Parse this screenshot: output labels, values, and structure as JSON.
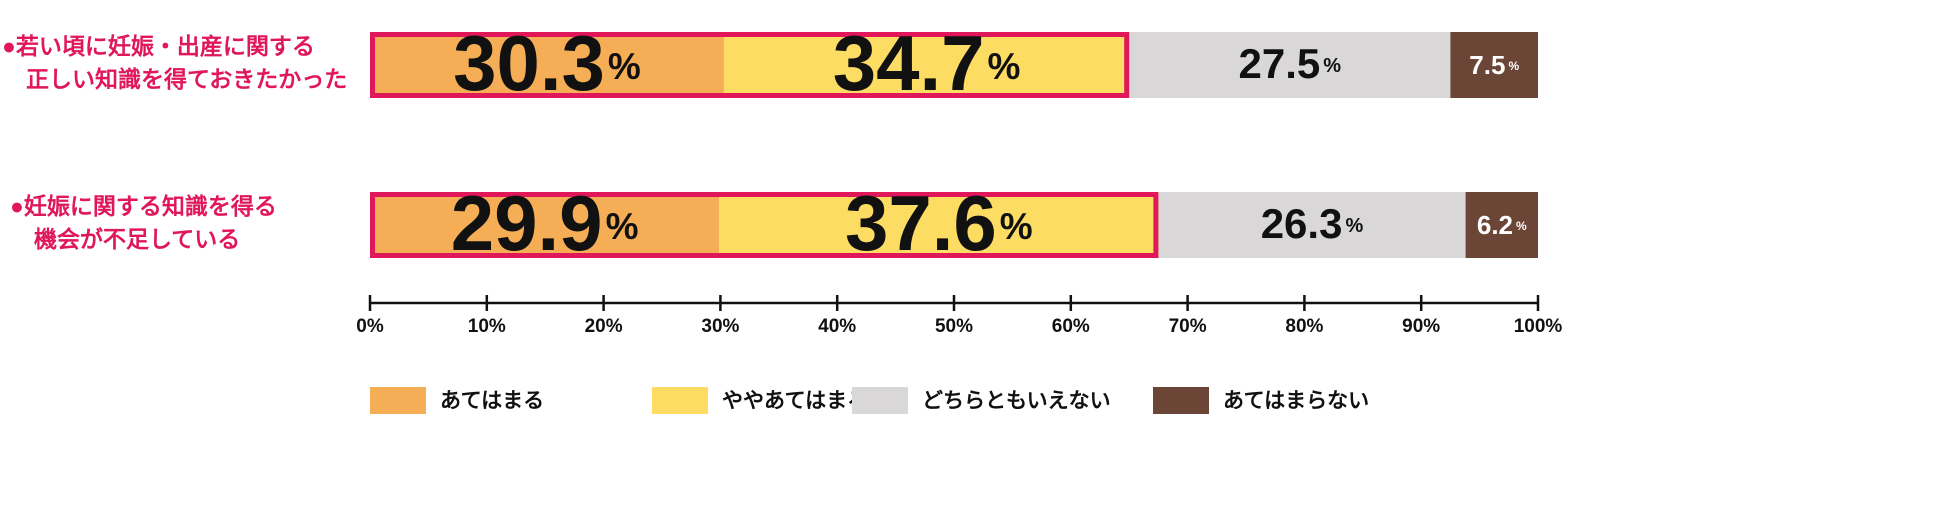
{
  "chart_data": {
    "type": "stacked-bar-horizontal",
    "categories": [
      [
        "●若い頃に妊娠・出産に関する",
        "正しい知識を得ておきたかった"
      ],
      [
        "●妊娠に関する知識を得る",
        "機会が不足している"
      ]
    ],
    "series": [
      {
        "name": "あてはまる",
        "color": "#f5ae55",
        "values": [
          30.3,
          29.9
        ],
        "value_labels": [
          "30.3%",
          "29.9%"
        ]
      },
      {
        "name": "ややあてはまる",
        "color": "#fcdc62",
        "values": [
          34.7,
          37.6
        ],
        "value_labels": [
          "34.7%",
          "37.6%"
        ]
      },
      {
        "name": "どちらともいえない",
        "color": "#d9d7d7",
        "values": [
          27.5,
          26.3
        ],
        "value_labels": [
          "27.5%",
          "26.3%"
        ]
      },
      {
        "name": "あてはまらない",
        "color": "#6b4536",
        "values": [
          7.5,
          6.2
        ],
        "value_labels": [
          "7.5%",
          "6.2%"
        ]
      }
    ],
    "xlim": [
      0,
      100
    ],
    "xticks": [
      {
        "value": 0,
        "label": "0%"
      },
      {
        "value": 10,
        "label": "10%"
      },
      {
        "value": 20,
        "label": "20%"
      },
      {
        "value": 30,
        "label": "30%"
      },
      {
        "value": 40,
        "label": "40%"
      },
      {
        "value": 50,
        "label": "50%"
      },
      {
        "value": 60,
        "label": "60%"
      },
      {
        "value": 70,
        "label": "70%"
      },
      {
        "value": 80,
        "label": "80%"
      },
      {
        "value": 90,
        "label": "90%"
      },
      {
        "value": 100,
        "label": "100%"
      }
    ]
  }
}
